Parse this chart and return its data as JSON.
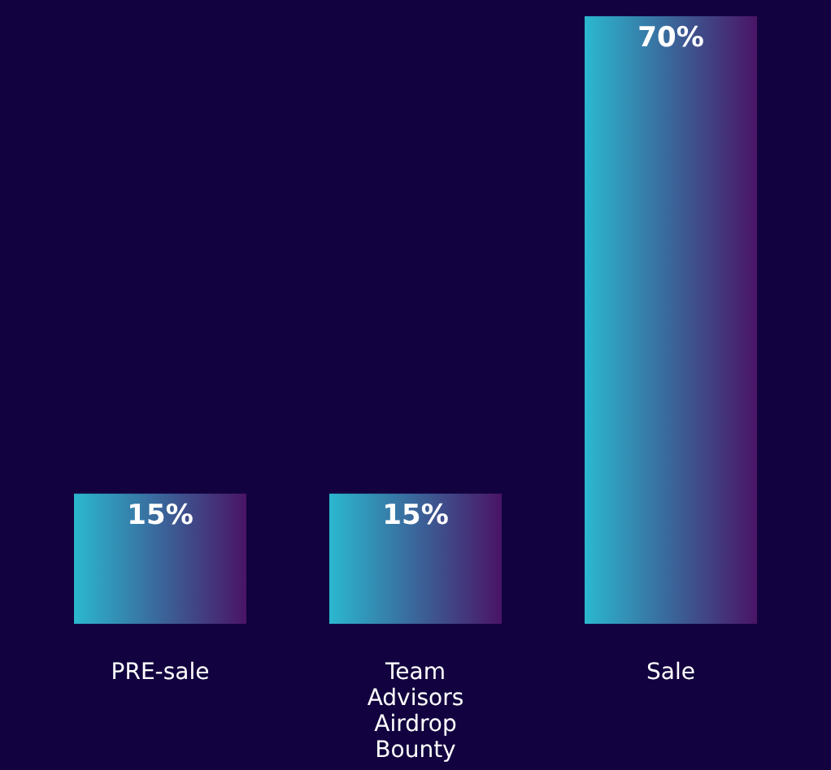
{
  "chart_data": {
    "type": "bar",
    "categories": [
      "PRE-sale",
      "Team\nAdvisors\nAirdrop\nBounty",
      "Sale"
    ],
    "values": [
      15,
      15,
      70
    ],
    "color": "#2bb8cf",
    "value_labels": [
      "15%",
      "15%",
      "70%"
    ]
  }
}
